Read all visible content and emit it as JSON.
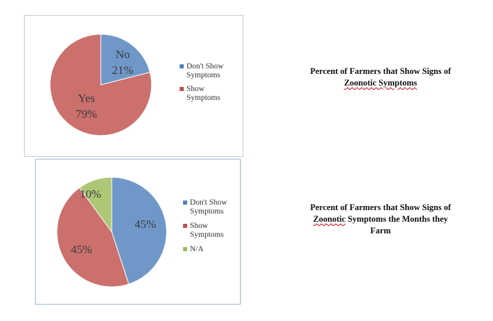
{
  "chart_data": [
    {
      "type": "pie",
      "title_lines": [
        "Percent of Farmers that Show Signs of",
        "Zoonotic Symptoms"
      ],
      "slices": [
        {
          "label": "No",
          "value": 21,
          "value_label": "21%",
          "color": "#4f81bd",
          "legend": [
            "Don't Show",
            "Symptoms"
          ]
        },
        {
          "label": "Yes",
          "value": 79,
          "value_label": "79%",
          "color": "#c0504d",
          "legend": [
            "Show",
            "Symptoms"
          ]
        }
      ],
      "legend_position": "right"
    },
    {
      "type": "pie",
      "title_lines": [
        "Percent of Farmers that Show Signs of",
        "Zoonotic Symptoms the Months they",
        "Farm"
      ],
      "slices": [
        {
          "label": "",
          "value": 45,
          "value_label": "45%",
          "color": "#4f81bd",
          "legend": [
            "Don't Show",
            "Symptoms"
          ]
        },
        {
          "label": "",
          "value": 45,
          "value_label": "45%",
          "color": "#c0504d",
          "legend": [
            "Show",
            "Symptoms"
          ]
        },
        {
          "label": "",
          "value": 10,
          "value_label": "10%",
          "color": "#9bbb59",
          "legend": [
            "N/A"
          ]
        }
      ],
      "legend_position": "right"
    }
  ],
  "colors": {
    "blue": "#4f81bd",
    "red": "#c0504d",
    "green": "#9bbb59"
  }
}
